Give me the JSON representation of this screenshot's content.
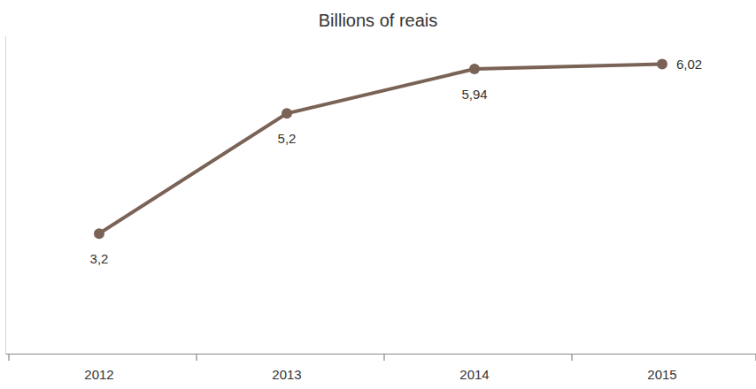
{
  "chart_data": {
    "type": "line",
    "title": "Billions of reais",
    "categories": [
      "2012",
      "2013",
      "2014",
      "2015"
    ],
    "values": [
      3.2,
      5.2,
      5.94,
      6.02
    ],
    "value_labels": [
      "3,2",
      "5,2",
      "5,94",
      "6,02"
    ],
    "color": "#7a6356",
    "marker": "circle",
    "data_labels": true,
    "ylim": [
      1.2,
      6.5
    ],
    "yticks": [],
    "tick_labels": "x",
    "grid": false
  }
}
